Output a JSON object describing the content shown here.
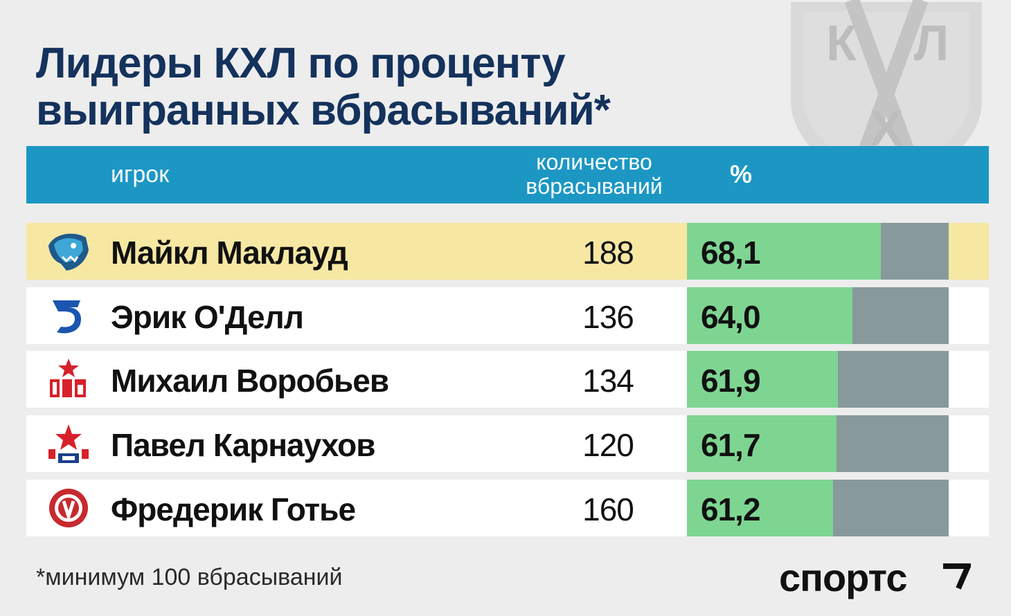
{
  "watermark": {
    "letters": [
      "К",
      "Л",
      "Х"
    ]
  },
  "title": {
    "line1": "Лидеры КХЛ по проценту",
    "line2": "выигранных вбрасываний*"
  },
  "columns": {
    "player": "игрок",
    "count_line1": "количество",
    "count_line2": "вбрасываний",
    "pct": "%"
  },
  "colors": {
    "header": "#1c97c4",
    "highlight_row": "#f6e7a3",
    "bar_fill": "#7ed592",
    "bar_track": "#88999b",
    "title": "#14325c"
  },
  "chart_data": {
    "type": "table",
    "columns": [
      "игрок",
      "количество вбрасываний",
      "%"
    ],
    "rows": [
      {
        "logo": "bars-leopard-logo",
        "name": "Майкл Маклауд",
        "count": 188,
        "pct": 68.1,
        "pct_label": "68,1"
      },
      {
        "logo": "dynamo-logo",
        "name": "Эрик О'Делл",
        "count": 136,
        "pct": 64.0,
        "pct_label": "64,0"
      },
      {
        "logo": "ska-logo",
        "name": "Михаил Воробьев",
        "count": 134,
        "pct": 61.9,
        "pct_label": "61,9"
      },
      {
        "logo": "cska-logo",
        "name": "Павел Карнаухов",
        "count": 120,
        "pct": 61.7,
        "pct_label": "61,7"
      },
      {
        "logo": "vityaz-logo",
        "name": "Фредерик Готье",
        "count": 160,
        "pct": 61.2,
        "pct_label": "61,2"
      }
    ]
  },
  "footnote": "*минимум 100 вбрасываний",
  "brand": "спортс"
}
